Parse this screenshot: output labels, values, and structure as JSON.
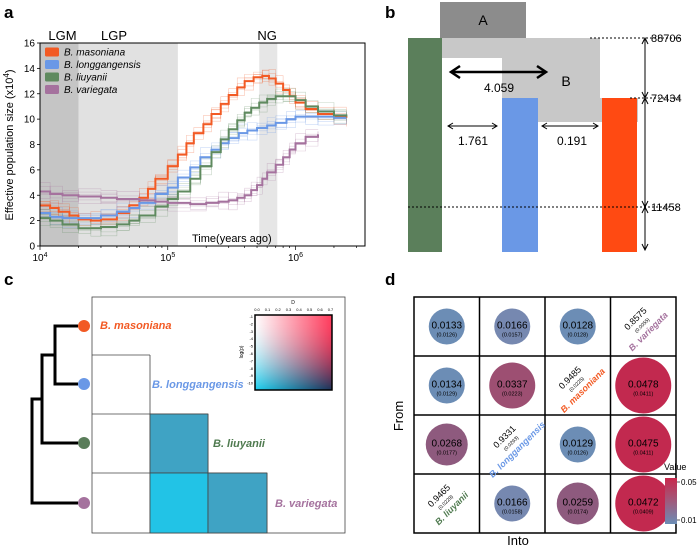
{
  "panel_labels": {
    "a": "a",
    "b": "b",
    "c": "c",
    "d": "d"
  },
  "chart_data": [
    {
      "id": "a",
      "type": "line",
      "title": "",
      "xlabel": "Time(years ago)",
      "ylabel": "Effective population size (x10",
      "ylabel_exp": "4",
      "ylabel_close": ")",
      "xscale": "log",
      "xlim": [
        10000,
        3500000
      ],
      "ylim": [
        0,
        16
      ],
      "yticks": [
        0,
        2,
        4,
        6,
        8,
        10,
        12,
        14,
        16
      ],
      "xtick_labels": [
        {
          "base": "10",
          "exp": "4",
          "value": 10000
        },
        {
          "base": "10",
          "exp": "5",
          "value": 100000
        },
        {
          "base": "10",
          "exp": "6",
          "value": 1000000
        }
      ],
      "shaded_periods": [
        {
          "name": "LGM",
          "from": 10000,
          "to": 20000,
          "color": "#bdbdbd"
        },
        {
          "name": "LGP",
          "from": 10000,
          "to": 120000,
          "color": "#d9d9d9"
        },
        {
          "name": "NG",
          "from": 520000,
          "to": 720000,
          "color": "#e0e0e0"
        }
      ],
      "period_labels": [
        {
          "text": "LGM",
          "x": 15000
        },
        {
          "text": "LGP",
          "x": 38000
        },
        {
          "text": "NG",
          "x": 600000
        }
      ],
      "legend": "top-left",
      "series": [
        {
          "name": "B. masoniana",
          "color": "#f25a24",
          "points": [
            [
              10000,
              3.2
            ],
            [
              12000,
              3.0
            ],
            [
              14000,
              2.7
            ],
            [
              17000,
              2.4
            ],
            [
              20000,
              2.1
            ],
            [
              25000,
              2.0
            ],
            [
              30000,
              2.1
            ],
            [
              40000,
              2.6
            ],
            [
              50000,
              3.2
            ],
            [
              60000,
              3.8
            ],
            [
              70000,
              4.5
            ],
            [
              80000,
              5.3
            ],
            [
              100000,
              6.3
            ],
            [
              120000,
              7.2
            ],
            [
              140000,
              8.1
            ],
            [
              160000,
              8.9
            ],
            [
              190000,
              9.6
            ],
            [
              220000,
              10.4
            ],
            [
              260000,
              11.2
            ],
            [
              300000,
              11.9
            ],
            [
              350000,
              12.5
            ],
            [
              400000,
              13.0
            ],
            [
              470000,
              13.3
            ],
            [
              550000,
              13.4
            ],
            [
              620000,
              13.2
            ],
            [
              700000,
              12.8
            ],
            [
              800000,
              12.3
            ],
            [
              900000,
              11.8
            ],
            [
              1000000,
              11.3
            ],
            [
              1200000,
              10.8
            ],
            [
              1500000,
              10.4
            ],
            [
              2000000,
              10.2
            ],
            [
              2500000,
              10.1
            ]
          ]
        },
        {
          "name": "B. longgangensis",
          "color": "#6a98e6",
          "points": [
            [
              10000,
              2.6
            ],
            [
              12000,
              2.3
            ],
            [
              15000,
              2.2
            ],
            [
              20000,
              2.2
            ],
            [
              30000,
              2.4
            ],
            [
              40000,
              2.7
            ],
            [
              50000,
              3.0
            ],
            [
              60000,
              3.4
            ],
            [
              80000,
              4.1
            ],
            [
              100000,
              4.6
            ],
            [
              120000,
              5.4
            ],
            [
              150000,
              6.2
            ],
            [
              180000,
              7.0
            ],
            [
              220000,
              7.6
            ],
            [
              260000,
              8.1
            ],
            [
              300000,
              8.5
            ],
            [
              360000,
              8.9
            ],
            [
              420000,
              9.1
            ],
            [
              500000,
              9.3
            ],
            [
              600000,
              9.5
            ],
            [
              700000,
              9.7
            ],
            [
              850000,
              10.0
            ],
            [
              1000000,
              10.2
            ],
            [
              1200000,
              10.2
            ],
            [
              1500000,
              10.2
            ],
            [
              2000000,
              10.1
            ],
            [
              2500000,
              10.1
            ]
          ]
        },
        {
          "name": "B. liuyanii",
          "color": "#5f8a5f",
          "points": [
            [
              10000,
              2.2
            ],
            [
              12000,
              2.0
            ],
            [
              15000,
              1.7
            ],
            [
              20000,
              1.4
            ],
            [
              25000,
              1.4
            ],
            [
              30000,
              1.5
            ],
            [
              40000,
              1.7
            ],
            [
              50000,
              2.0
            ],
            [
              60000,
              2.4
            ],
            [
              80000,
              3.1
            ],
            [
              100000,
              3.7
            ],
            [
              120000,
              4.3
            ],
            [
              150000,
              5.3
            ],
            [
              180000,
              6.3
            ],
            [
              220000,
              7.4
            ],
            [
              260000,
              8.4
            ],
            [
              300000,
              9.2
            ],
            [
              350000,
              9.9
            ],
            [
              400000,
              10.5
            ],
            [
              450000,
              10.9
            ],
            [
              520000,
              11.3
            ],
            [
              600000,
              11.6
            ],
            [
              700000,
              11.8
            ],
            [
              800000,
              11.8
            ],
            [
              1000000,
              11.5
            ],
            [
              1200000,
              11.0
            ],
            [
              1500000,
              10.6
            ],
            [
              2000000,
              10.3
            ],
            [
              2500000,
              10.2
            ]
          ]
        },
        {
          "name": "B. variegata",
          "color": "#a5729e",
          "points": [
            [
              10000,
              4.3
            ],
            [
              12000,
              4.1
            ],
            [
              15000,
              4.0
            ],
            [
              20000,
              3.9
            ],
            [
              30000,
              3.8
            ],
            [
              40000,
              3.7
            ],
            [
              60000,
              3.6
            ],
            [
              80000,
              3.5
            ],
            [
              100000,
              3.4
            ],
            [
              150000,
              3.3
            ],
            [
              200000,
              3.4
            ],
            [
              250000,
              3.5
            ],
            [
              300000,
              3.6
            ],
            [
              350000,
              3.8
            ],
            [
              400000,
              4.0
            ],
            [
              450000,
              4.4
            ],
            [
              500000,
              4.8
            ],
            [
              550000,
              5.3
            ],
            [
              600000,
              5.8
            ],
            [
              700000,
              6.4
            ],
            [
              800000,
              7.0
            ],
            [
              900000,
              7.6
            ],
            [
              1000000,
              8.1
            ],
            [
              1200000,
              8.6
            ],
            [
              1500000,
              8.8
            ]
          ]
        }
      ]
    },
    {
      "id": "b",
      "type": "diagram",
      "nodes": [
        {
          "name": "A",
          "color": "#8c8c8c"
        },
        {
          "name": "B",
          "color": "#c8c8c8"
        }
      ],
      "populations": [
        {
          "name": "B. liuyanii",
          "color": "#5b7f5b"
        },
        {
          "name": "B. longgangensis",
          "color": "#6a98e6"
        },
        {
          "name": "B. masoniana",
          "color": "#ff4a12"
        }
      ],
      "time_labels": [
        "88706",
        "72434",
        "11458"
      ],
      "migration_rates": [
        "4.059",
        "1.761",
        "0.191"
      ]
    },
    {
      "id": "c",
      "type": "heatmap",
      "species": [
        {
          "name": "B. masoniana",
          "color": "#f25a24"
        },
        {
          "name": "B. longgangensis",
          "color": "#6a98e6"
        },
        {
          "name": "B. liuyanii",
          "color": "#4f7a4f"
        },
        {
          "name": "B. variegata",
          "color": "#a5729e"
        }
      ],
      "dot_colors": [
        "#f25a24",
        "#6a98e6",
        "#5a7d5a",
        "#a5729e"
      ],
      "cells": [
        {
          "row": 2,
          "col": 1,
          "color": "#3fa3c4"
        },
        {
          "row": 3,
          "col": 1,
          "color": "#22c3e6"
        },
        {
          "row": 3,
          "col": 2,
          "color": "#3fa3c4"
        }
      ],
      "legend": {
        "label_top": "D",
        "label_left": "log(p)",
        "x_ticks": [
          "0.0",
          "0.1",
          "0.2",
          "0.3",
          "0.4",
          "0.5",
          "0.6",
          "0.7"
        ],
        "y_ticks": [
          "-1",
          "-2",
          "-3",
          "-4",
          "-5",
          "-6",
          "-7",
          "-8",
          "-9",
          "-10"
        ]
      }
    },
    {
      "id": "d",
      "type": "heatmap",
      "xlabel": "Into",
      "ylabel": "From",
      "grid": [
        [
          {
            "v": "0.0133",
            "s": "(0.0126)",
            "c": "#6c8db5",
            "r": 18
          },
          {
            "v": "0.0166",
            "s": "(0.0157)",
            "c": "#7688b0",
            "r": 18
          },
          {
            "v": "0.0128",
            "s": "(0.0128)",
            "c": "#6c8db5",
            "r": 18
          },
          {
            "diag": "0.8575",
            "dsub": "(0.0055)",
            "dname": "B. variegata",
            "dcolor": "#a5729e"
          }
        ],
        [
          {
            "v": "0.0134",
            "s": "(0.0129)",
            "c": "#6c8db5",
            "r": 18
          },
          {
            "v": "0.0337",
            "s": "(0.0223)",
            "c": "#9d4f72",
            "r": 23
          },
          {
            "diag": "0.9485",
            "dsub": "(0.0225)",
            "dname": "B. masoniana",
            "dcolor": "#f25a24"
          },
          {
            "v": "0.0478",
            "s": "(0.0411)",
            "c": "#c2294f",
            "r": 28
          }
        ],
        [
          {
            "v": "0.0268",
            "s": "(0.0177)",
            "c": "#8e5a7e",
            "r": 21
          },
          {
            "diag": "0.9331",
            "dsub": "(0.0293)",
            "dname": "B. longgangensis",
            "dcolor": "#6a98e6"
          },
          {
            "v": "0.0129",
            "s": "(0.0126)",
            "c": "#6c8db5",
            "r": 18
          },
          {
            "v": "0.0475",
            "s": "(0.0411)",
            "c": "#c2294f",
            "r": 28
          }
        ],
        [
          {
            "diag": "0.9465",
            "dsub": "(0.0229)",
            "dname": "B. liuyanii",
            "dcolor": "#4f7a4f"
          },
          {
            "v": "0.0166",
            "s": "(0.0158)",
            "c": "#7688b0",
            "r": 18
          },
          {
            "v": "0.0259",
            "s": "(0.0174)",
            "c": "#8e5a7e",
            "r": 21
          },
          {
            "v": "0.0472",
            "s": "(0.0409)",
            "c": "#c2294f",
            "r": 28
          }
        ]
      ],
      "colorbar": {
        "title": "Value",
        "max": "0.05",
        "min": "0.01"
      }
    }
  ]
}
